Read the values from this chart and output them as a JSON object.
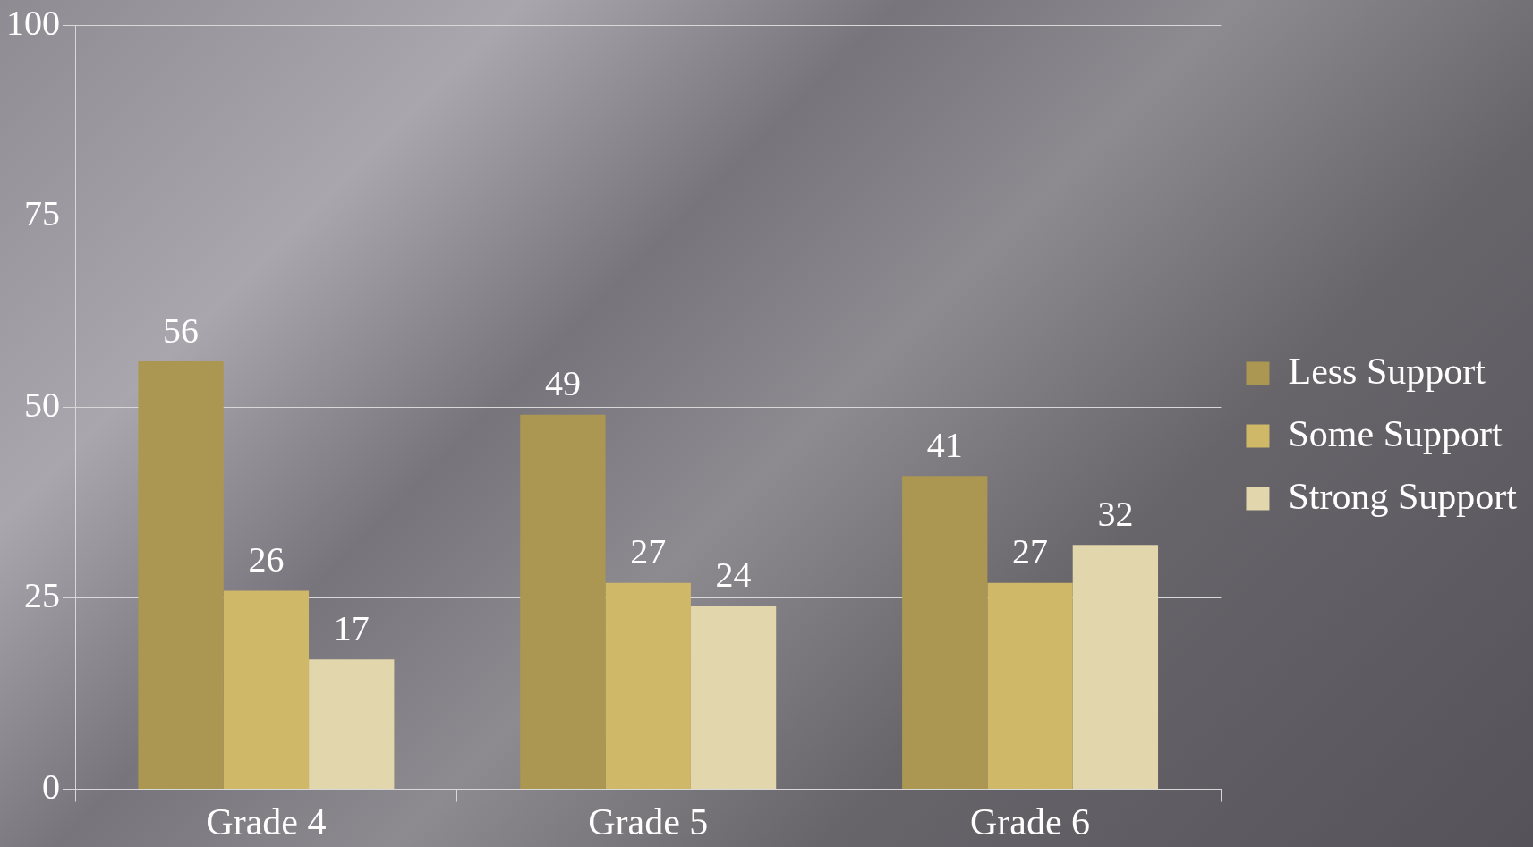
{
  "chart_data": {
    "type": "bar",
    "categories": [
      "Grade 4",
      "Grade 5",
      "Grade 6"
    ],
    "series": [
      {
        "name": "Less Support",
        "color": "#ab9752",
        "values": [
          56,
          49,
          41
        ]
      },
      {
        "name": "Some Support",
        "color": "#cfb968",
        "values": [
          26,
          27,
          27
        ]
      },
      {
        "name": "Strong Support",
        "color": "#e2d6ad",
        "values": [
          17,
          24,
          32
        ]
      }
    ],
    "ylim": [
      0,
      100
    ],
    "yticks": [
      0,
      25,
      50,
      75,
      100
    ],
    "grid": "y",
    "legend": "right",
    "data_labels": true
  }
}
